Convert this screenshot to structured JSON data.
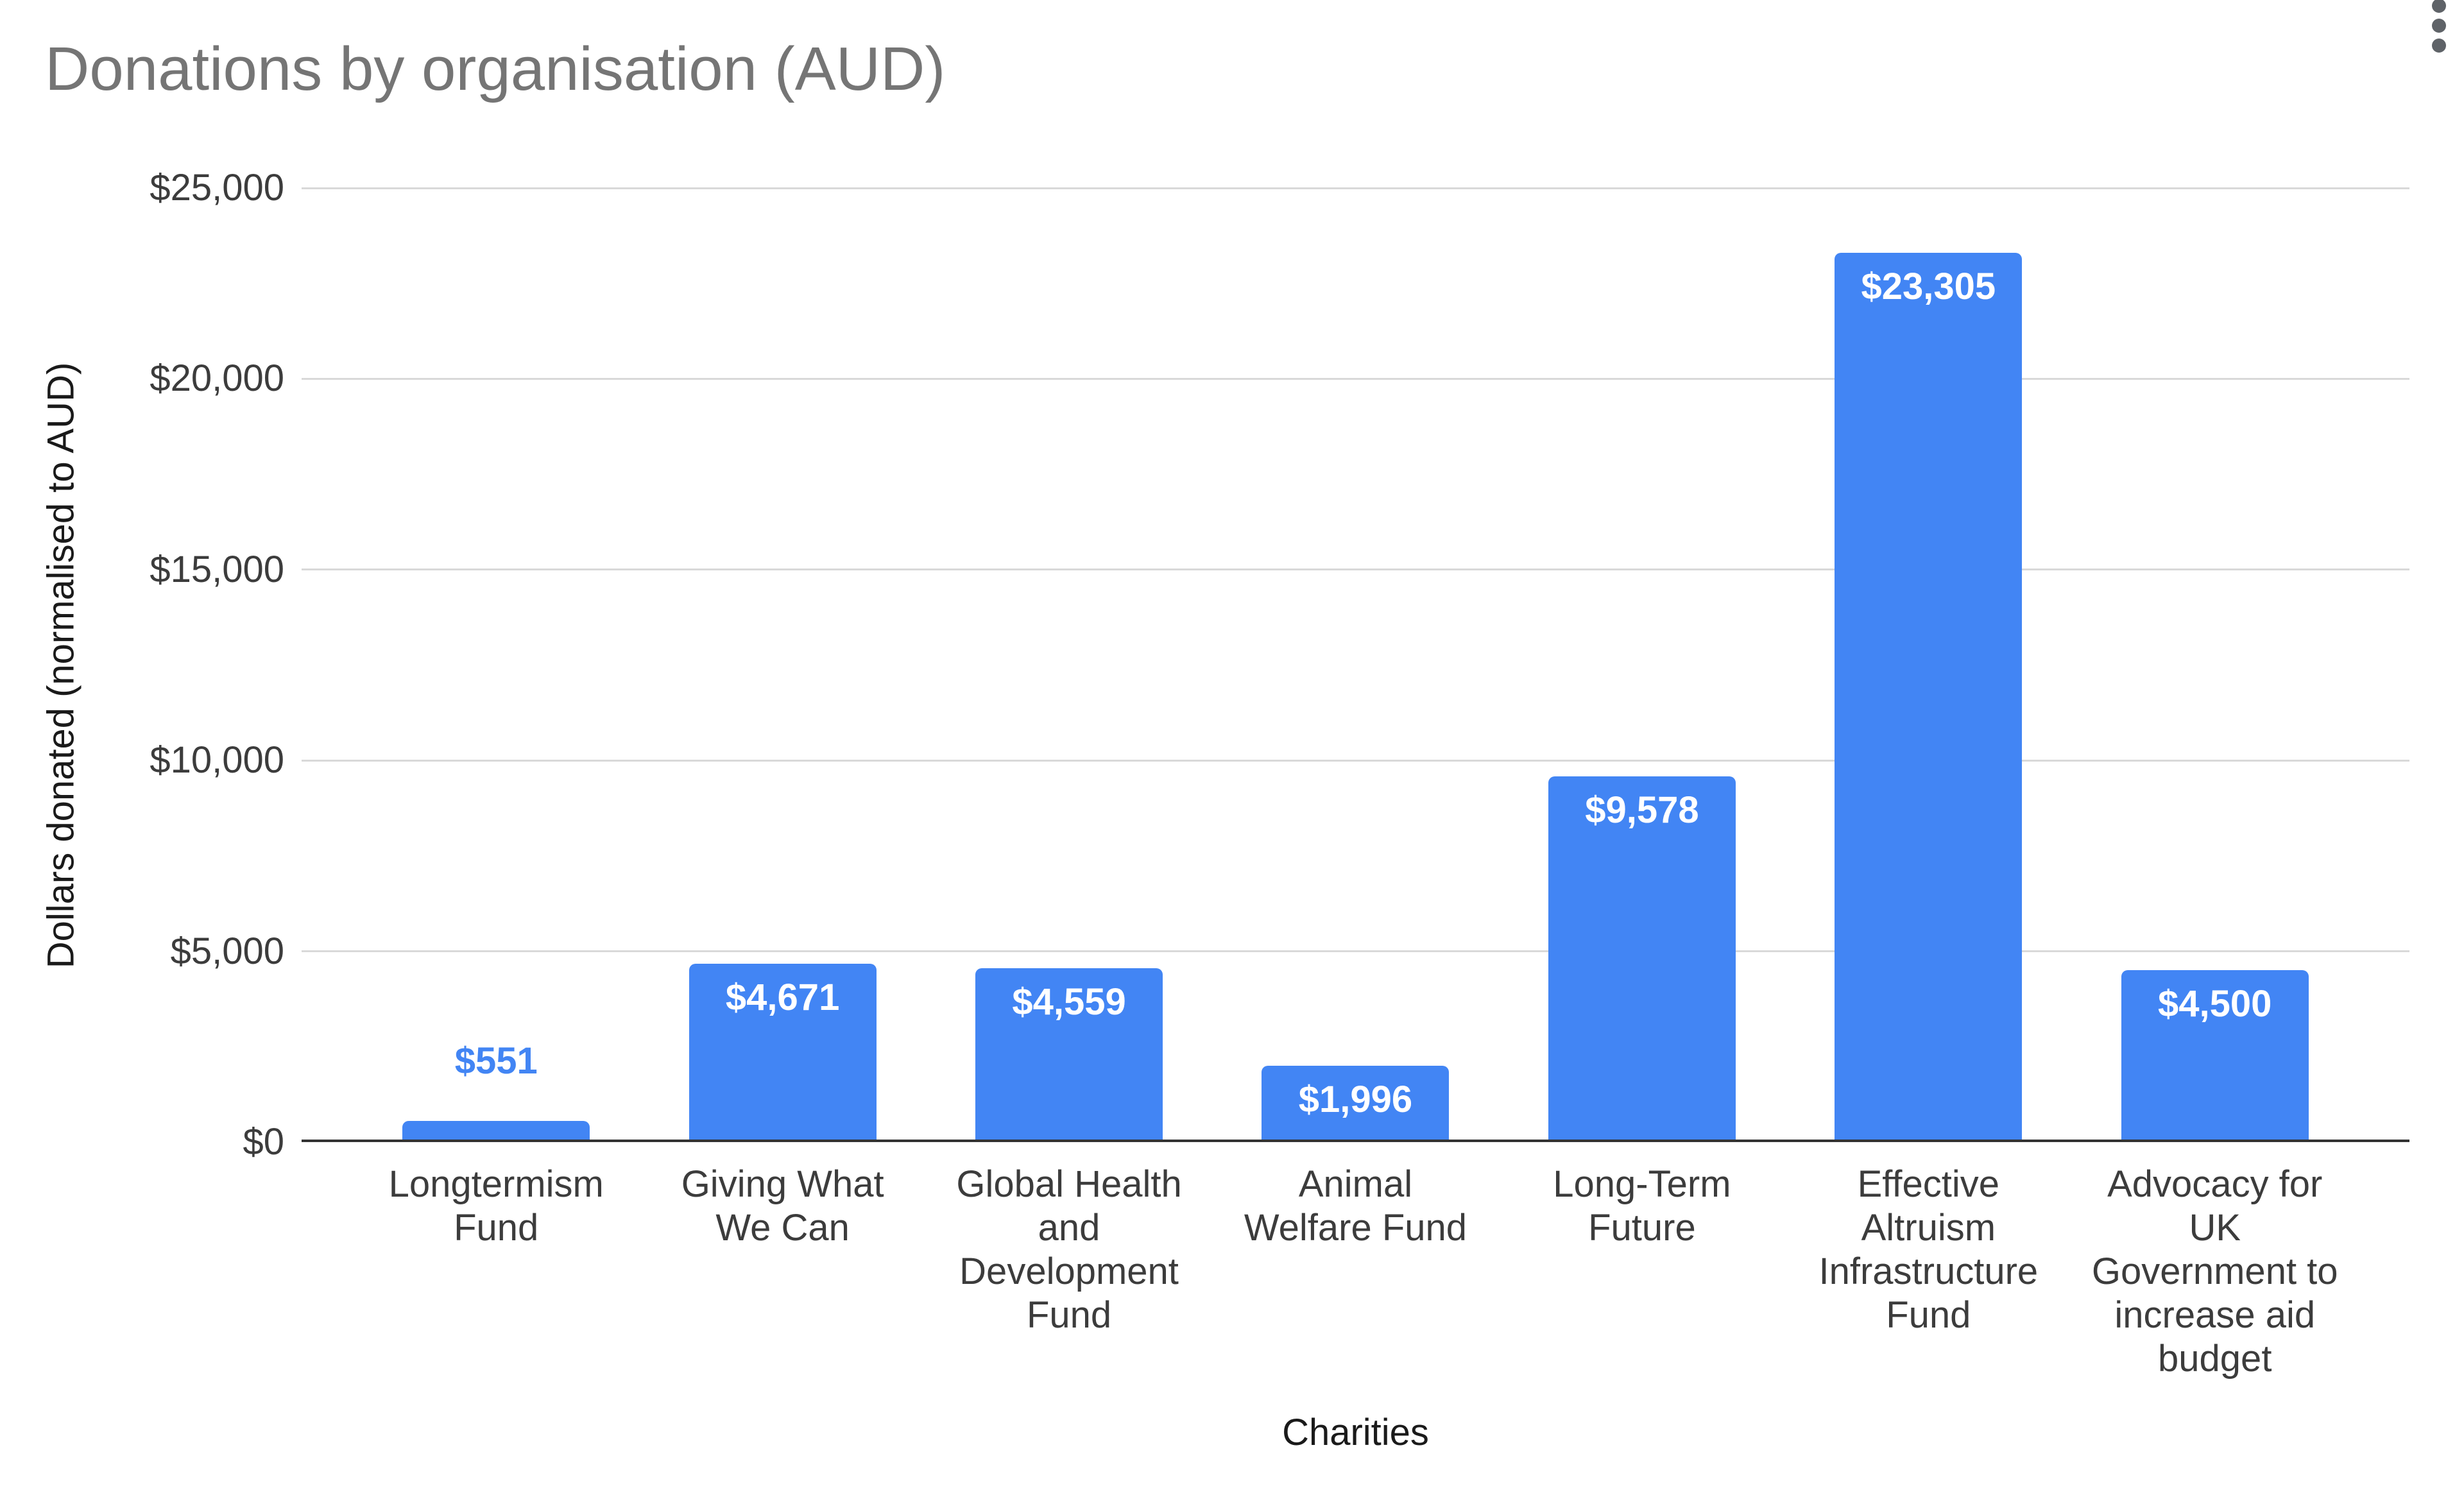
{
  "header": {
    "title": "Donations by organisation (AUD)",
    "menu_icon": "kebab-vertical-menu"
  },
  "chart_data": {
    "type": "bar",
    "title": "Donations by organisation (AUD)",
    "xlabel": "Charities",
    "ylabel": "Dollars donated (normalised to AUD)",
    "categories": [
      "Longtermism Fund",
      "Giving What We Can",
      "Global Health and Development Fund",
      "Animal Welfare Fund",
      "Long-Term Future",
      "Effective Altruism Infrastructure Fund",
      "Advocacy for UK Government to increase aid budget"
    ],
    "category_label_lines": [
      [
        "Longtermism",
        "Fund"
      ],
      [
        "Giving What",
        "We Can"
      ],
      [
        "Global Health",
        "and",
        "Development",
        "Fund"
      ],
      [
        "Animal",
        "Welfare Fund"
      ],
      [
        "Long-Term",
        "Future"
      ],
      [
        "Effective",
        "Altruism",
        "Infrastructure",
        "Fund"
      ],
      [
        "Advocacy for",
        "UK",
        "Government to",
        "increase aid",
        "budget"
      ]
    ],
    "values": [
      551,
      4671,
      4559,
      1996,
      9578,
      23305,
      4500
    ],
    "value_labels": [
      "$551",
      "$4,671",
      "$4,559",
      "$1,996",
      "$9,578",
      "$23,305",
      "$4,500"
    ],
    "y_ticks": [
      {
        "value": 0,
        "label": "$0"
      },
      {
        "value": 5000,
        "label": "$5,000"
      },
      {
        "value": 10000,
        "label": "$10,000"
      },
      {
        "value": 15000,
        "label": "$15,000"
      },
      {
        "value": 20000,
        "label": "$20,000"
      },
      {
        "value": 25000,
        "label": "$25,000"
      }
    ],
    "ylim": [
      0,
      25000
    ],
    "grid": true,
    "legend_position": "none",
    "colors": {
      "bar": "#4285f4",
      "value_label_inside": "#ffffff",
      "value_label_outside": "#4285f4",
      "gridline": "#d9d9d9",
      "axis_line": "#333333",
      "title_text": "#757575",
      "tick_text": "#3c3c3c",
      "axis_title_text": "#1a1a1a",
      "menu_dots": "#5f6368",
      "background": "#ffffff"
    }
  }
}
